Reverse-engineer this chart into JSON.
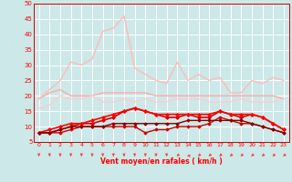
{
  "xlabel": "Vent moyen/en rafales ( km/h )",
  "bg_color": "#cce8e8",
  "grid_color": "#ffffff",
  "xlim": [
    -0.5,
    23.5
  ],
  "ylim": [
    5,
    50
  ],
  "yticks": [
    5,
    10,
    15,
    20,
    25,
    30,
    35,
    40,
    45,
    50
  ],
  "xticks": [
    0,
    1,
    2,
    3,
    4,
    5,
    6,
    7,
    8,
    9,
    10,
    11,
    12,
    13,
    14,
    15,
    16,
    17,
    18,
    19,
    20,
    21,
    22,
    23
  ],
  "lines": [
    {
      "y": [
        19,
        21,
        22,
        20,
        20,
        20,
        21,
        21,
        21,
        21,
        21,
        20,
        20,
        20,
        20,
        20,
        20,
        20,
        20,
        20,
        20,
        20,
        20,
        19
      ],
      "color": "#ffaaaa",
      "lw": 1.0,
      "marker": null
    },
    {
      "y": [
        19,
        22,
        25,
        31,
        30,
        32,
        41,
        42,
        46,
        29,
        27,
        25,
        24,
        31,
        25,
        27,
        25,
        26,
        21,
        21,
        25,
        24,
        26,
        25
      ],
      "color": "#ffbbbb",
      "lw": 1.0,
      "marker": null
    },
    {
      "y": [
        16,
        17,
        20,
        19,
        19,
        20,
        18,
        18,
        19,
        18,
        19,
        18,
        18,
        19,
        19,
        19,
        18,
        18,
        18,
        19,
        18,
        18,
        18,
        19
      ],
      "color": "#ffcccc",
      "lw": 1.0,
      "marker": null
    },
    {
      "y": [
        8,
        8,
        9,
        10,
        11,
        11,
        12,
        13,
        15,
        16,
        15,
        14,
        13,
        13,
        14,
        13,
        13,
        15,
        14,
        13,
        14,
        13,
        11,
        9
      ],
      "color": "#dd0000",
      "lw": 1.2,
      "marker": "D",
      "ms": 2.0
    },
    {
      "y": [
        8,
        9,
        10,
        11,
        11,
        12,
        13,
        14,
        15,
        16,
        15,
        14,
        14,
        14,
        14,
        14,
        14,
        15,
        14,
        14,
        14,
        13,
        11,
        9
      ],
      "color": "#ff0000",
      "lw": 1.2,
      "marker": "D",
      "ms": 2.0
    },
    {
      "y": [
        8,
        8,
        8,
        9,
        10,
        10,
        10,
        10,
        10,
        10,
        8,
        9,
        9,
        10,
        10,
        10,
        11,
        13,
        12,
        11,
        11,
        10,
        9,
        8
      ],
      "color": "#cc0000",
      "lw": 1.0,
      "marker": "D",
      "ms": 1.8
    },
    {
      "y": [
        8,
        8,
        9,
        10,
        10,
        10,
        10,
        11,
        11,
        11,
        11,
        11,
        11,
        11,
        12,
        12,
        12,
        12,
        12,
        12,
        11,
        10,
        9,
        8
      ],
      "color": "#880000",
      "lw": 1.0,
      "marker": "D",
      "ms": 1.8
    }
  ],
  "wind_dirs": [
    270,
    270,
    270,
    270,
    270,
    270,
    270,
    270,
    270,
    270,
    270,
    270,
    270,
    225,
    180,
    225,
    225,
    225,
    225,
    225,
    225,
    225,
    225,
    225
  ],
  "arrow_color": "#ff4444"
}
